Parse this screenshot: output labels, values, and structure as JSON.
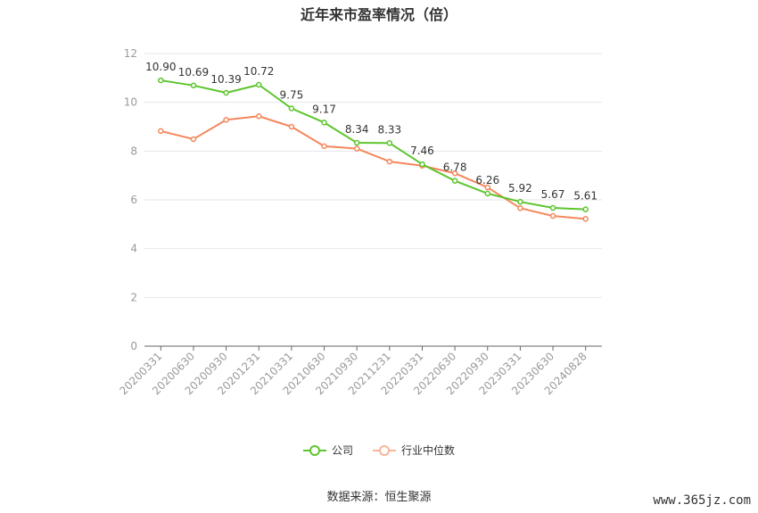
{
  "chart_data": {
    "type": "line",
    "title": "近年来市盈率情况（倍）",
    "categories": [
      "20200331",
      "20200630",
      "20200930",
      "20201231",
      "20210331",
      "20210630",
      "20210930",
      "20211231",
      "20220331",
      "20220630",
      "20220930",
      "20230331",
      "20230630",
      "20240828"
    ],
    "series": [
      {
        "name": "公司",
        "color": "#5cc52d",
        "values": [
          10.9,
          10.69,
          10.39,
          10.72,
          9.75,
          9.17,
          8.34,
          8.33,
          7.46,
          6.78,
          6.26,
          5.92,
          5.67,
          5.61
        ],
        "labels": [
          "10.90",
          "10.69",
          "10.39",
          "10.72",
          "9.75",
          "9.17",
          "8.34",
          "8.33",
          "7.46",
          "6.78",
          "6.26",
          "5.92",
          "5.67",
          "5.61"
        ]
      },
      {
        "name": "行业中位数",
        "color": "#f4875c",
        "values": [
          8.82,
          8.49,
          9.28,
          9.43,
          9.0,
          8.2,
          8.1,
          7.57,
          7.4,
          7.09,
          6.51,
          5.66,
          5.34,
          5.22
        ]
      }
    ],
    "ylim": [
      0,
      12
    ],
    "yticks": [
      0,
      2,
      4,
      6,
      8,
      10,
      12
    ],
    "grid": true,
    "legend_position": "bottom"
  },
  "source_text": "数据来源：恒生聚源",
  "watermark": "www.365jz.com"
}
